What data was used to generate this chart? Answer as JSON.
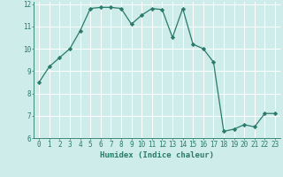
{
  "x": [
    0,
    1,
    2,
    3,
    4,
    5,
    6,
    7,
    8,
    9,
    10,
    11,
    12,
    13,
    14,
    15,
    16,
    17,
    18,
    19,
    20,
    21,
    22,
    23
  ],
  "y": [
    8.5,
    9.2,
    9.6,
    10.0,
    10.8,
    11.8,
    11.85,
    11.85,
    11.8,
    11.1,
    11.5,
    11.8,
    11.75,
    10.5,
    11.8,
    10.2,
    10.0,
    9.4,
    6.3,
    6.4,
    6.6,
    6.5,
    7.1,
    7.1
  ],
  "line_color": "#2a7a6a",
  "marker": "D",
  "marker_size": 2.2,
  "background_color": "#ceecea",
  "grid_color": "#ffffff",
  "xlabel": "Humidex (Indice chaleur)",
  "ylim": [
    6,
    12
  ],
  "xlim": [
    -0.5,
    23.5
  ],
  "yticks": [
    6,
    7,
    8,
    9,
    10,
    11,
    12
  ],
  "xticks": [
    0,
    1,
    2,
    3,
    4,
    5,
    6,
    7,
    8,
    9,
    10,
    11,
    12,
    13,
    14,
    15,
    16,
    17,
    18,
    19,
    20,
    21,
    22,
    23
  ],
  "tick_label_color": "#2a7a6a",
  "label_fontsize": 6.5,
  "tick_fontsize": 5.5,
  "linewidth": 0.9
}
